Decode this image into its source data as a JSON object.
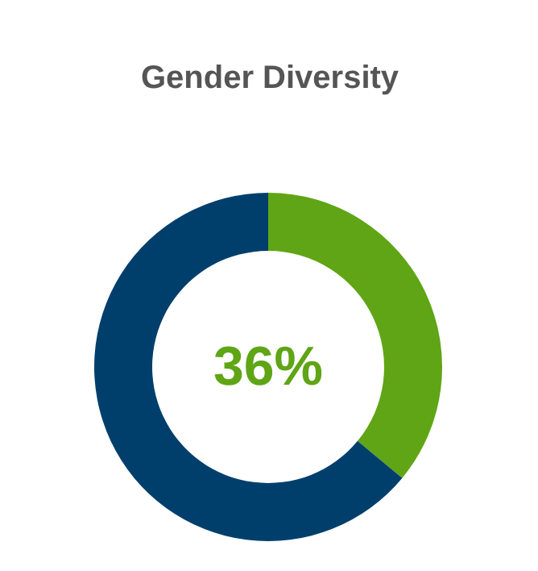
{
  "chart_data": {
    "type": "donut",
    "title": "Gender Diversity",
    "categories": [
      null,
      null
    ],
    "values": [
      36,
      64
    ],
    "colors": [
      "#5fa515",
      "#003f6c"
    ],
    "annotations": [
      "36%"
    ]
  }
}
